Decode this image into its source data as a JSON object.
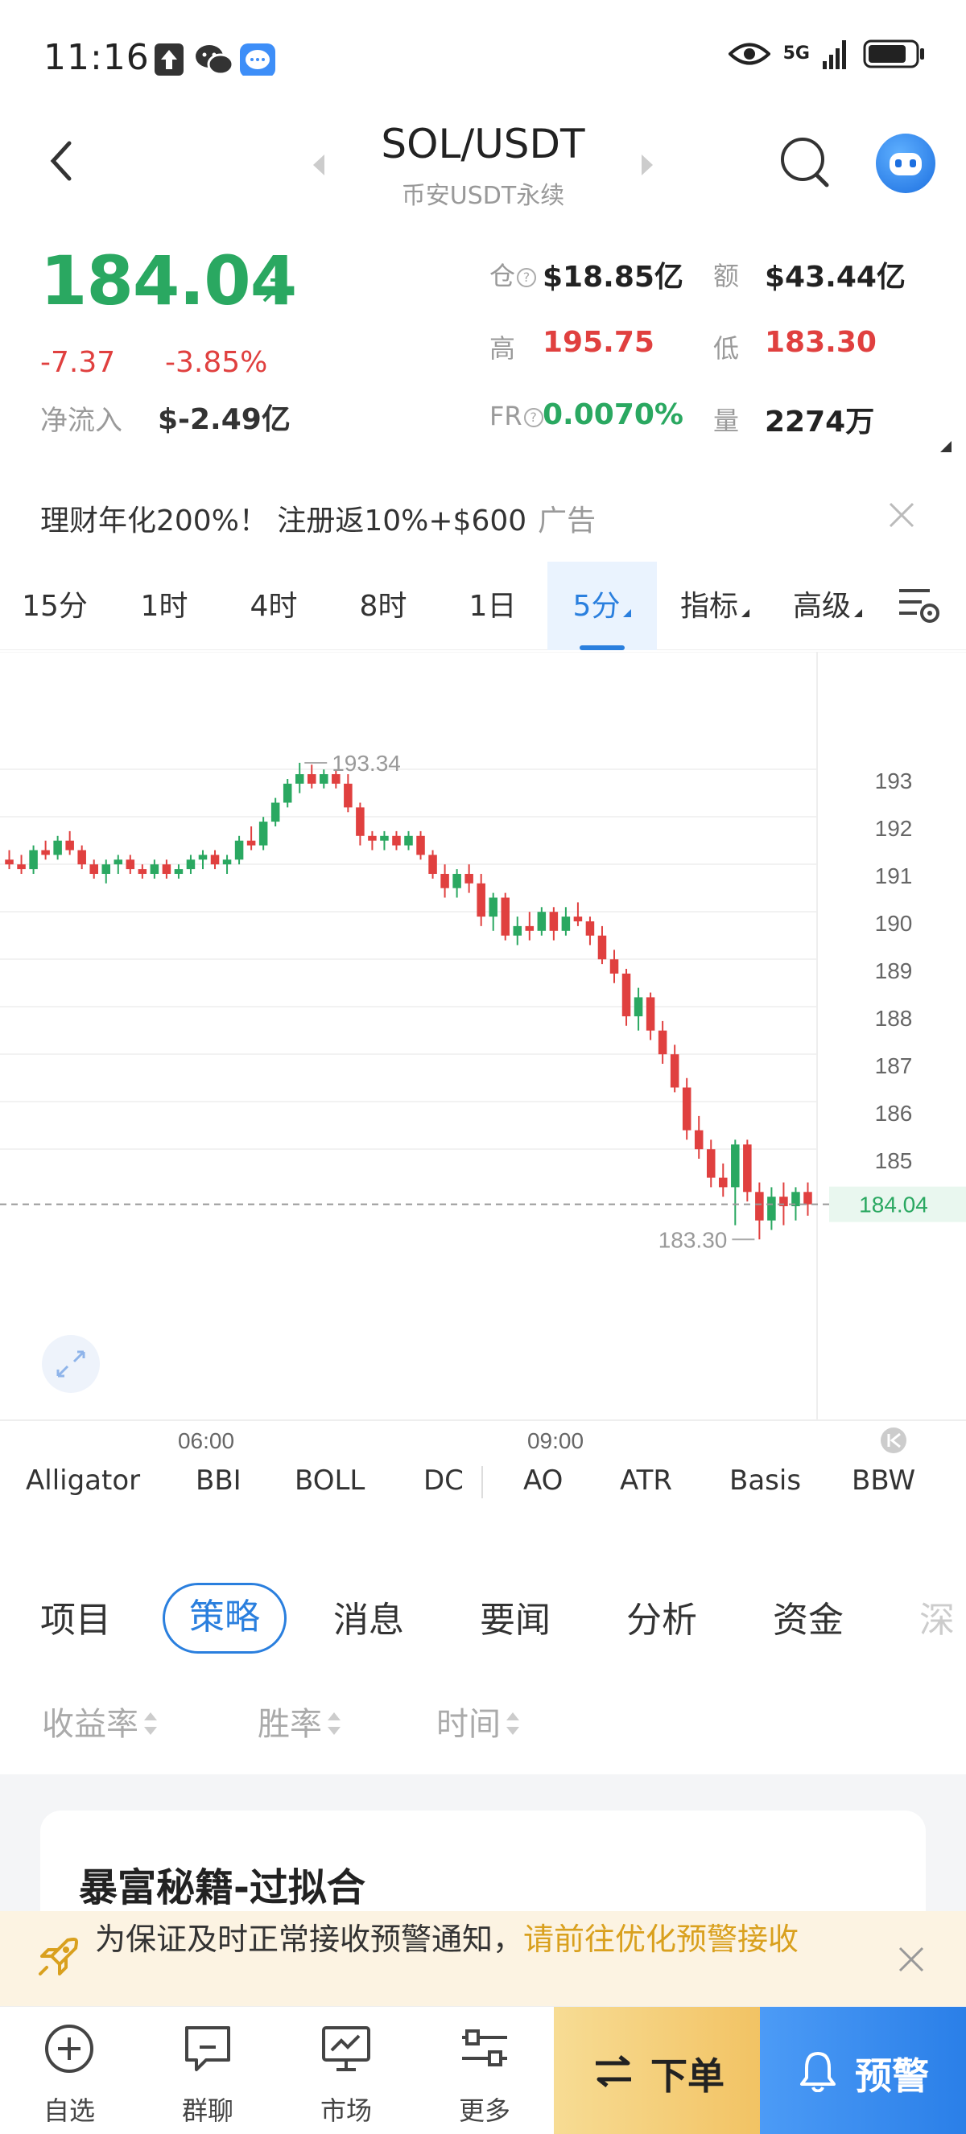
{
  "status_bar": {
    "time": "11:16",
    "network": "5G",
    "icons": [
      "upload-icon",
      "wechat-icon",
      "message-icon",
      "eye-icon",
      "signal-icon",
      "battery-icon"
    ]
  },
  "header": {
    "pair": "SOL/USDT",
    "market": "币安USDT永续"
  },
  "ticker": {
    "last_price": "184.04",
    "change_abs": "-7.37",
    "change_pct": "-3.85%",
    "net_inflow_label": "净流入",
    "net_inflow_value": "$-2.49亿",
    "open_interest_label": "仓",
    "open_interest_value": "$18.85亿",
    "turnover_label": "额",
    "turnover_value": "$43.44亿",
    "high_label": "高",
    "high_value": "195.75",
    "low_label": "低",
    "low_value": "183.30",
    "funding_label": "FR",
    "funding_value": "0.0070%",
    "volume_label": "量",
    "volume_value": "2274万"
  },
  "ad": {
    "text": "理财年化200%！ 注册返10%+$600",
    "tag": "广告"
  },
  "timeframes": {
    "items": [
      "15分",
      "1时",
      "4时",
      "8时",
      "1日"
    ],
    "active": "5分",
    "indicators": "指标",
    "advanced": "高级"
  },
  "chart_data": {
    "type": "candlestick",
    "y_ticks": [
      193,
      192,
      191,
      190,
      189,
      188,
      187,
      186,
      185
    ],
    "x_ticks": [
      "06:00",
      "09:00"
    ],
    "high_marker": "193.34",
    "low_marker": "183.30",
    "last_price_tag": "184.04",
    "ylim": [
      183.0,
      194.0
    ],
    "candles_ohlc": [
      [
        191.3,
        191.5,
        191.1,
        191.2
      ],
      [
        191.2,
        191.4,
        191.0,
        191.1
      ],
      [
        191.1,
        191.6,
        191.0,
        191.5
      ],
      [
        191.5,
        191.7,
        191.3,
        191.4
      ],
      [
        191.4,
        191.8,
        191.3,
        191.7
      ],
      [
        191.7,
        191.9,
        191.4,
        191.5
      ],
      [
        191.5,
        191.6,
        191.1,
        191.2
      ],
      [
        191.2,
        191.3,
        190.9,
        191.0
      ],
      [
        191.0,
        191.3,
        190.8,
        191.2
      ],
      [
        191.2,
        191.4,
        191.0,
        191.3
      ],
      [
        191.3,
        191.4,
        191.0,
        191.1
      ],
      [
        191.1,
        191.2,
        190.9,
        191.0
      ],
      [
        191.0,
        191.3,
        190.9,
        191.2
      ],
      [
        191.2,
        191.3,
        190.9,
        191.0
      ],
      [
        191.0,
        191.2,
        190.9,
        191.1
      ],
      [
        191.1,
        191.4,
        191.0,
        191.3
      ],
      [
        191.3,
        191.5,
        191.1,
        191.4
      ],
      [
        191.4,
        191.5,
        191.1,
        191.2
      ],
      [
        191.2,
        191.4,
        191.0,
        191.3
      ],
      [
        191.3,
        191.8,
        191.2,
        191.7
      ],
      [
        191.7,
        192.0,
        191.5,
        191.6
      ],
      [
        191.6,
        192.2,
        191.5,
        192.1
      ],
      [
        192.1,
        192.6,
        192.0,
        192.5
      ],
      [
        192.5,
        193.0,
        192.4,
        192.9
      ],
      [
        192.9,
        193.34,
        192.7,
        193.1
      ],
      [
        193.1,
        193.3,
        192.8,
        192.9
      ],
      [
        192.9,
        193.2,
        192.8,
        193.1
      ],
      [
        193.1,
        193.2,
        192.8,
        192.9
      ],
      [
        192.9,
        193.1,
        192.3,
        192.4
      ],
      [
        192.4,
        192.5,
        191.6,
        191.8
      ],
      [
        191.8,
        191.9,
        191.5,
        191.7
      ],
      [
        191.7,
        191.9,
        191.5,
        191.8
      ],
      [
        191.8,
        191.9,
        191.5,
        191.6
      ],
      [
        191.6,
        191.9,
        191.5,
        191.8
      ],
      [
        191.8,
        191.9,
        191.3,
        191.4
      ],
      [
        191.4,
        191.5,
        190.9,
        191.0
      ],
      [
        191.0,
        191.2,
        190.5,
        190.7
      ],
      [
        190.7,
        191.1,
        190.5,
        191.0
      ],
      [
        191.0,
        191.2,
        190.6,
        190.8
      ],
      [
        190.8,
        191.0,
        189.9,
        190.1
      ],
      [
        190.1,
        190.6,
        189.8,
        190.5
      ],
      [
        190.5,
        190.6,
        189.6,
        189.7
      ],
      [
        189.7,
        190.1,
        189.5,
        189.9
      ],
      [
        189.9,
        190.2,
        189.6,
        189.8
      ],
      [
        189.8,
        190.3,
        189.7,
        190.2
      ],
      [
        190.2,
        190.3,
        189.6,
        189.8
      ],
      [
        189.8,
        190.3,
        189.7,
        190.1
      ],
      [
        190.1,
        190.4,
        189.9,
        190.0
      ],
      [
        190.0,
        190.1,
        189.5,
        189.7
      ],
      [
        189.7,
        189.9,
        189.1,
        189.2
      ],
      [
        189.2,
        189.4,
        188.7,
        188.9
      ],
      [
        188.9,
        189.0,
        187.8,
        188.0
      ],
      [
        188.0,
        188.6,
        187.7,
        188.4
      ],
      [
        188.4,
        188.5,
        187.5,
        187.7
      ],
      [
        187.7,
        187.9,
        187.0,
        187.2
      ],
      [
        187.2,
        187.4,
        186.4,
        186.5
      ],
      [
        186.5,
        186.7,
        185.4,
        185.6
      ],
      [
        185.6,
        185.9,
        185.0,
        185.2
      ],
      [
        185.2,
        185.4,
        184.4,
        184.6
      ],
      [
        184.6,
        184.9,
        184.2,
        184.4
      ],
      [
        184.4,
        185.4,
        183.6,
        185.3
      ],
      [
        185.3,
        185.4,
        184.1,
        184.3
      ],
      [
        184.3,
        184.5,
        183.3,
        183.7
      ],
      [
        183.7,
        184.4,
        183.5,
        184.2
      ],
      [
        184.2,
        184.5,
        183.6,
        184.0
      ],
      [
        184.0,
        184.4,
        183.7,
        184.3
      ],
      [
        184.3,
        184.5,
        183.8,
        184.04
      ]
    ]
  },
  "indicator_list": [
    "Alligator",
    "BBI",
    "BOLL",
    "DC",
    "AO",
    "ATR",
    "Basis",
    "BBW"
  ],
  "info_tabs": {
    "items": [
      "项目",
      "消息",
      "要闻",
      "分析",
      "资金",
      "深"
    ],
    "active": "策略"
  },
  "sort": {
    "items": [
      "收益率",
      "胜率",
      "时间"
    ]
  },
  "card": {
    "title": "暴富秘籍-过拟合"
  },
  "notice": {
    "text": "为保证及时正常接收预警通知，",
    "link": "请前往优化预警接收"
  },
  "bottom_nav": {
    "items": [
      "自选",
      "群聊",
      "市场",
      "更多"
    ],
    "order": "下单",
    "alert": "预警"
  },
  "colors": {
    "up": "#2aa861",
    "down": "#e0403f",
    "accent": "#2a7fde",
    "order_btn": "#f2c364",
    "alert_btn": "#2a7fe8"
  }
}
